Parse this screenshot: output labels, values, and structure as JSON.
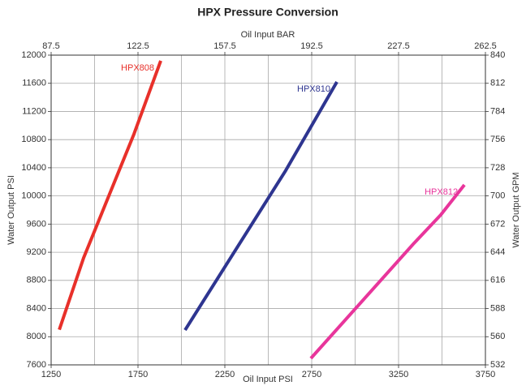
{
  "chart_data": {
    "type": "line",
    "title": "HPX Pressure Conversion",
    "x_label": "Oil Input PSI",
    "x2_label": "Oil Input  BAR",
    "y_label": "Water Output PSI",
    "y2_label": "Water Output GPM",
    "xlim": [
      1250,
      3750
    ],
    "xticks": [
      1250,
      1750,
      2250,
      2750,
      3250,
      3750
    ],
    "x_grid": [
      1500,
      1750,
      2000,
      2250,
      2500,
      2750,
      3000,
      3250,
      3500
    ],
    "x2lim": [
      87.5,
      262.5
    ],
    "x2ticks": [
      87.5,
      122.5,
      157.5,
      192.5,
      227.5,
      262.5
    ],
    "ylim": [
      7600,
      12000
    ],
    "yticks": [
      7600,
      8000,
      8400,
      8800,
      9200,
      9600,
      10000,
      10400,
      10800,
      11200,
      11600,
      12000
    ],
    "y2lim": [
      532,
      840
    ],
    "y2ticks": [
      532,
      560,
      588,
      616,
      644,
      672,
      700,
      728,
      756,
      784,
      812,
      840
    ],
    "grid": true,
    "series": [
      {
        "name": "HPX808",
        "color": "#e8302a",
        "x": [
          1297,
          1437,
          1727,
          1881
        ],
        "values": [
          8100,
          9120,
          10880,
          11920
        ]
      },
      {
        "name": "HPX810",
        "color": "#2e3590",
        "x": [
          2021,
          2600,
          2895
        ],
        "values": [
          8095,
          10360,
          11620
        ]
      },
      {
        "name": "HPX812",
        "color": "#e8359b",
        "x": [
          2745,
          3339,
          3493,
          3629
        ],
        "values": [
          7692,
          9328,
          9731,
          10157
        ]
      }
    ]
  }
}
